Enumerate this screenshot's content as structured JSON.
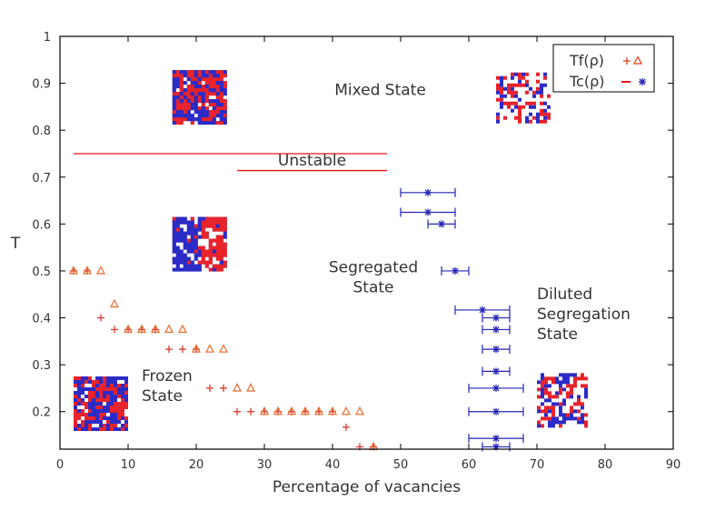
{
  "chart_data": {
    "type": "scatter",
    "title": "",
    "xlabel": "Percentage of vacancies",
    "ylabel": "T",
    "xlim": [
      0,
      90
    ],
    "ylim": [
      0.12,
      1
    ],
    "x_ticks": [
      0,
      10,
      20,
      30,
      40,
      50,
      60,
      70,
      80,
      90
    ],
    "y_ticks": [
      0.2,
      0.3,
      0.4,
      0.5,
      0.6,
      0.7,
      0.8,
      0.9,
      1
    ],
    "grid": false,
    "legend_position": "top-right",
    "legend": [
      {
        "label": "Tf(ρ)",
        "marker_a": "+",
        "marker_b": "triangle",
        "color": "#e0451f"
      },
      {
        "label": "Tc(ρ)",
        "marker_a": "line",
        "marker_b": "*",
        "color_a": "#e8131f",
        "color_b": "#2424b8"
      }
    ],
    "series": [
      {
        "name": "Tf(ρ) plus",
        "marker": "+",
        "color": "#d83a2c",
        "points": [
          {
            "x": 2,
            "y": 0.5
          },
          {
            "x": 4,
            "y": 0.5
          },
          {
            "x": 6,
            "y": 0.4
          },
          {
            "x": 8,
            "y": 0.375
          },
          {
            "x": 10,
            "y": 0.375
          },
          {
            "x": 12,
            "y": 0.375
          },
          {
            "x": 14,
            "y": 0.375
          },
          {
            "x": 16,
            "y": 0.333
          },
          {
            "x": 18,
            "y": 0.333
          },
          {
            "x": 20,
            "y": 0.333
          },
          {
            "x": 22,
            "y": 0.25
          },
          {
            "x": 24,
            "y": 0.25
          },
          {
            "x": 26,
            "y": 0.2
          },
          {
            "x": 28,
            "y": 0.2
          },
          {
            "x": 30,
            "y": 0.2
          },
          {
            "x": 32,
            "y": 0.2
          },
          {
            "x": 34,
            "y": 0.2
          },
          {
            "x": 36,
            "y": 0.2
          },
          {
            "x": 38,
            "y": 0.2
          },
          {
            "x": 40,
            "y": 0.2
          },
          {
            "x": 42,
            "y": 0.167
          },
          {
            "x": 44,
            "y": 0.125
          },
          {
            "x": 46,
            "y": 0.125
          }
        ]
      },
      {
        "name": "Tf(ρ) triangle",
        "marker": "triangle",
        "color": "#e8743a",
        "points": [
          {
            "x": 2,
            "y": 0.5
          },
          {
            "x": 4,
            "y": 0.5
          },
          {
            "x": 6,
            "y": 0.5
          },
          {
            "x": 8,
            "y": 0.429
          },
          {
            "x": 10,
            "y": 0.375
          },
          {
            "x": 12,
            "y": 0.375
          },
          {
            "x": 14,
            "y": 0.375
          },
          {
            "x": 16,
            "y": 0.375
          },
          {
            "x": 18,
            "y": 0.375
          },
          {
            "x": 20,
            "y": 0.333
          },
          {
            "x": 22,
            "y": 0.333
          },
          {
            "x": 24,
            "y": 0.333
          },
          {
            "x": 26,
            "y": 0.25
          },
          {
            "x": 28,
            "y": 0.25
          },
          {
            "x": 30,
            "y": 0.2
          },
          {
            "x": 32,
            "y": 0.2
          },
          {
            "x": 34,
            "y": 0.2
          },
          {
            "x": 36,
            "y": 0.2
          },
          {
            "x": 38,
            "y": 0.2
          },
          {
            "x": 40,
            "y": 0.2
          },
          {
            "x": 42,
            "y": 0.2
          },
          {
            "x": 44,
            "y": 0.2
          },
          {
            "x": 46,
            "y": 0.125
          }
        ]
      },
      {
        "name": "Tc(ρ)",
        "marker": "*",
        "color": "#2424b8",
        "points": [
          {
            "x": 54,
            "y": 0.667,
            "xmin": 50,
            "xmax": 58
          },
          {
            "x": 54,
            "y": 0.625,
            "xmin": 50,
            "xmax": 58
          },
          {
            "x": 56,
            "y": 0.6,
            "xmin": 54,
            "xmax": 58
          },
          {
            "x": 58,
            "y": 0.5,
            "xmin": 56,
            "xmax": 60
          },
          {
            "x": 62,
            "y": 0.4167,
            "xmin": 58,
            "xmax": 66
          },
          {
            "x": 64,
            "y": 0.4,
            "xmin": 62,
            "xmax": 66
          },
          {
            "x": 64,
            "y": 0.375,
            "xmin": 62,
            "xmax": 66
          },
          {
            "x": 64,
            "y": 0.333,
            "xmin": 62,
            "xmax": 66
          },
          {
            "x": 64,
            "y": 0.286,
            "xmin": 62,
            "xmax": 66
          },
          {
            "x": 64,
            "y": 0.25,
            "xmin": 60,
            "xmax": 68
          },
          {
            "x": 64,
            "y": 0.2,
            "xmin": 60,
            "xmax": 68
          },
          {
            "x": 64,
            "y": 0.143,
            "xmin": 60,
            "xmax": 68
          },
          {
            "x": 64,
            "y": 0.125,
            "xmin": 62,
            "xmax": 66
          }
        ]
      }
    ],
    "unstable_lines": [
      {
        "name": "upper",
        "y": 0.75,
        "x_start": 2,
        "x_end": 48,
        "color": "#e8131f"
      },
      {
        "name": "lower",
        "y": 0.714,
        "x_start": 26,
        "x_end": 48,
        "color": "#e8131f"
      }
    ],
    "annotations": [
      {
        "name": "mixed-state",
        "lines": [
          "Mixed State"
        ],
        "x": 47,
        "y": 0.875
      },
      {
        "name": "unstable",
        "lines": [
          "Unstable"
        ],
        "x": 37,
        "y": 0.725
      },
      {
        "name": "segregated-state",
        "lines": [
          "Segregated",
          "State"
        ],
        "x": 46,
        "y": 0.497
      },
      {
        "name": "diluted-segregation-state",
        "lines": [
          "Diluted",
          "Segregation",
          "State"
        ],
        "x": 70,
        "y": 0.44
      },
      {
        "name": "frozen-state",
        "lines": [
          "Frozen",
          "State"
        ],
        "x": 12,
        "y": 0.265
      }
    ],
    "snapshots": [
      {
        "name": "mixed",
        "x0": 16.5,
        "x1": 24.5,
        "y0": 0.815,
        "y1": 0.928,
        "kind": "mixed-dense"
      },
      {
        "name": "segregated",
        "x0": 16.5,
        "x1": 24.5,
        "y0": 0.5,
        "y1": 0.615,
        "kind": "segregated"
      },
      {
        "name": "frozen",
        "x0": 2,
        "x1": 10,
        "y0": 0.16,
        "y1": 0.275,
        "kind": "mixed-dense"
      },
      {
        "name": "diluted-high",
        "x0": 64,
        "x1": 72,
        "y0": 0.812,
        "y1": 0.923,
        "kind": "diluted-mixed"
      },
      {
        "name": "diluted-low",
        "x0": 70,
        "x1": 77.5,
        "y0": 0.166,
        "y1": 0.282,
        "kind": "diluted-clusters"
      }
    ]
  }
}
